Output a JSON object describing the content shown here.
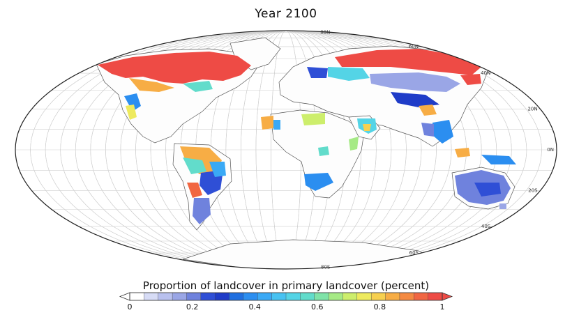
{
  "title": "Year 2100",
  "colorbar": {
    "label": "Proportion of landcover in primary landcover (percent)",
    "ticks": [
      "0",
      "0.2",
      "0.4",
      "0.6",
      "0.8",
      "1"
    ],
    "colors": [
      "#ffffff",
      "#d7dcf6",
      "#b9c1ef",
      "#9aa6e6",
      "#6f82dd",
      "#2f4fd6",
      "#1f3cc8",
      "#1f6fe0",
      "#2b8ef0",
      "#3aa9f5",
      "#47c2f2",
      "#54d4e6",
      "#62dccb",
      "#7fe3a8",
      "#a6ea86",
      "#cdee6c",
      "#eeea5e",
      "#f7d04f",
      "#f7ad45",
      "#f48a42",
      "#f16642",
      "#ee4b45"
    ],
    "arrow_low_color": "#ffffff",
    "arrow_high_color": "#ee4b45"
  },
  "lat_labels": [
    "80N",
    "60N",
    "40N",
    "20N",
    "0N",
    "20S",
    "40S",
    "60S",
    "80S"
  ]
}
